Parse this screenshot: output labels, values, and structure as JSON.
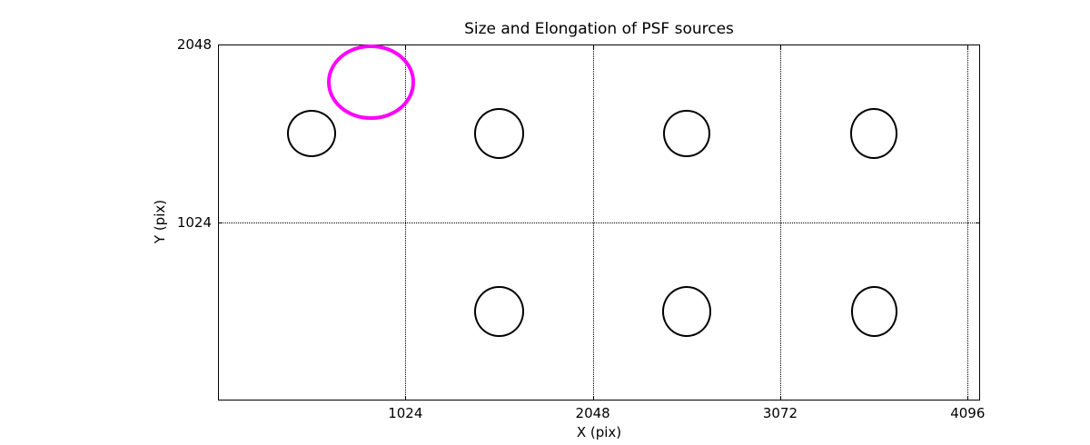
{
  "figure": {
    "background": "#ffffff",
    "axis_color": "#000000",
    "grid_color": "#000000",
    "grid_style": "dotted"
  },
  "chart_data": {
    "type": "scatter",
    "marker": "ellipse-outline",
    "title": "Size and Elongation of PSF sources",
    "xlabel": "X (pix)",
    "ylabel": "Y (pix)",
    "xlim": [
      0,
      4164
    ],
    "ylim": [
      0,
      2048
    ],
    "xticks": [
      1024,
      2048,
      3072,
      4096
    ],
    "yticks": [
      1024,
      2048
    ],
    "grid": "on",
    "legend": "none",
    "highlight_color": "#ff00ff",
    "source_color": "#000000",
    "sources": [
      {
        "x": 512,
        "y": 1536,
        "rx": 129,
        "ry": 130,
        "color": "#000000",
        "lw": 2,
        "kind": "psf-source"
      },
      {
        "x": 1536,
        "y": 1536,
        "rx": 132,
        "ry": 140,
        "color": "#000000",
        "lw": 2,
        "kind": "psf-source"
      },
      {
        "x": 2560,
        "y": 1536,
        "rx": 123,
        "ry": 132,
        "color": "#000000",
        "lw": 2,
        "kind": "psf-source"
      },
      {
        "x": 3584,
        "y": 1536,
        "rx": 123,
        "ry": 140,
        "color": "#000000",
        "lw": 2,
        "kind": "psf-source"
      },
      {
        "x": 1536,
        "y": 512,
        "rx": 131,
        "ry": 143,
        "color": "#000000",
        "lw": 2,
        "kind": "psf-source"
      },
      {
        "x": 2560,
        "y": 512,
        "rx": 129,
        "ry": 140,
        "color": "#000000",
        "lw": 2,
        "kind": "psf-source"
      },
      {
        "x": 3584,
        "y": 512,
        "rx": 121,
        "ry": 140,
        "color": "#000000",
        "lw": 2,
        "kind": "psf-source"
      },
      {
        "x": 836,
        "y": 1831,
        "rx": 228,
        "ry": 206,
        "color": "#ff00ff",
        "lw": 4.5,
        "kind": "psf-source-highlighted"
      }
    ]
  }
}
